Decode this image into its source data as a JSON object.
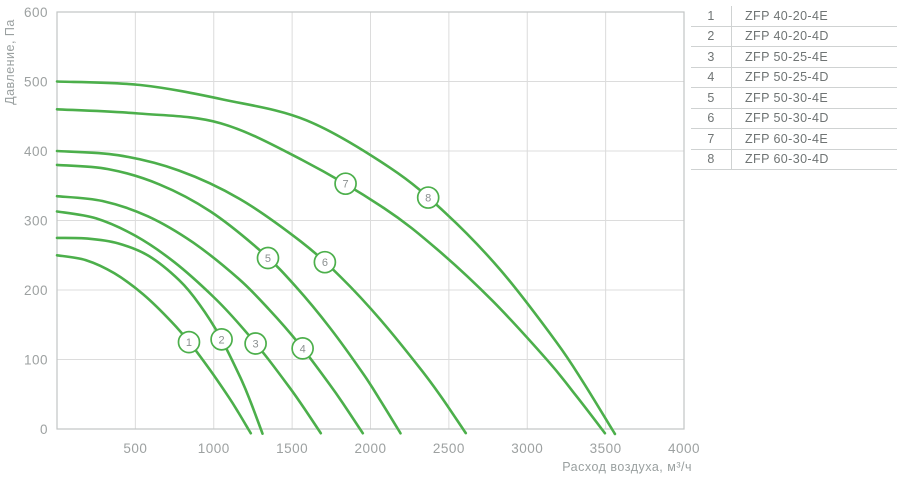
{
  "chart_data": {
    "type": "line",
    "title": "",
    "xlabel": "Расход воздуха, м³/ч",
    "ylabel": "Давление, Па",
    "xlim": [
      0,
      4000
    ],
    "ylim": [
      0,
      600
    ],
    "x_ticks": [
      500,
      1000,
      1500,
      2000,
      2500,
      3000,
      3500,
      4000
    ],
    "y_ticks": [
      0,
      100,
      200,
      300,
      400,
      500,
      600
    ],
    "grid": true,
    "legend_position": "right-table",
    "units": {
      "x": "м³/ч",
      "y": "Па"
    },
    "series": [
      {
        "id": "1",
        "label": "ZFP 40-20-4E",
        "marker": {
          "x": 842,
          "y": 125
        },
        "points": [
          [
            0,
            250
          ],
          [
            183,
            243
          ],
          [
            366,
            224
          ],
          [
            549,
            194
          ],
          [
            732,
            154
          ],
          [
            854,
            122
          ],
          [
            976,
            85
          ],
          [
            1098,
            45
          ],
          [
            1159,
            23
          ],
          [
            1220,
            0
          ]
        ]
      },
      {
        "id": "2",
        "label": "ZFP 40-20-4D",
        "marker": {
          "x": 1050,
          "y": 129
        },
        "points": [
          [
            0,
            275
          ],
          [
            195,
            274
          ],
          [
            390,
            267
          ],
          [
            585,
            249
          ],
          [
            780,
            214
          ],
          [
            910,
            179
          ],
          [
            1040,
            133
          ],
          [
            1170,
            74
          ],
          [
            1235,
            39
          ],
          [
            1300,
            0
          ]
        ]
      },
      {
        "id": "3",
        "label": "ZFP 50-25-4E",
        "marker": {
          "x": 1267,
          "y": 123
        },
        "points": [
          [
            0,
            313
          ],
          [
            250,
            303
          ],
          [
            500,
            278
          ],
          [
            749,
            240
          ],
          [
            999,
            190
          ],
          [
            1166,
            150
          ],
          [
            1332,
            105
          ],
          [
            1499,
            55
          ],
          [
            1582,
            28
          ],
          [
            1665,
            0
          ]
        ]
      },
      {
        "id": "4",
        "label": "ZFP 50-25-4D",
        "marker": {
          "x": 1567,
          "y": 116
        },
        "points": [
          [
            0,
            335
          ],
          [
            290,
            328
          ],
          [
            580,
            306
          ],
          [
            870,
            268
          ],
          [
            1160,
            216
          ],
          [
            1353,
            172
          ],
          [
            1546,
            122
          ],
          [
            1740,
            64
          ],
          [
            1836,
            33
          ],
          [
            1933,
            0
          ]
        ]
      },
      {
        "id": "5",
        "label": "ZFP 50-30-4E",
        "marker": {
          "x": 1346,
          "y": 246
        },
        "points": [
          [
            0,
            380
          ],
          [
            326,
            374
          ],
          [
            653,
            352
          ],
          [
            979,
            313
          ],
          [
            1305,
            255
          ],
          [
            1523,
            205
          ],
          [
            1740,
            146
          ],
          [
            1958,
            78
          ],
          [
            2066,
            40
          ],
          [
            2175,
            0
          ]
        ]
      },
      {
        "id": "6",
        "label": "ZFP 50-30-4D",
        "marker": {
          "x": 1709,
          "y": 240
        },
        "points": [
          [
            0,
            400
          ],
          [
            389,
            394
          ],
          [
            777,
            372
          ],
          [
            1166,
            331
          ],
          [
            1554,
            270
          ],
          [
            1813,
            218
          ],
          [
            2072,
            155
          ],
          [
            2331,
            83
          ],
          [
            2461,
            43
          ],
          [
            2590,
            0
          ]
        ]
      },
      {
        "id": "7",
        "label": "ZFP 60-30-4E",
        "marker": {
          "x": 1841,
          "y": 353
        },
        "points": [
          [
            0,
            460
          ],
          [
            521,
            454
          ],
          [
            1043,
            440
          ],
          [
            1564,
            387
          ],
          [
            2085,
            318
          ],
          [
            2433,
            257
          ],
          [
            2780,
            184
          ],
          [
            3128,
            99
          ],
          [
            3301,
            51
          ],
          [
            3475,
            0
          ]
        ]
      },
      {
        "id": "8",
        "label": "ZFP 60-30-4D",
        "marker": {
          "x": 2368,
          "y": 333
        },
        "points": [
          [
            0,
            500
          ],
          [
            531,
            495
          ],
          [
            1062,
            474
          ],
          [
            1593,
            444
          ],
          [
            2124,
            376
          ],
          [
            2478,
            311
          ],
          [
            2832,
            228
          ],
          [
            3186,
            125
          ],
          [
            3363,
            65
          ],
          [
            3540,
            0
          ]
        ]
      }
    ],
    "colors": {
      "curve_green": "#4caf4b",
      "grid": "#dcdcdc",
      "axis_border": "#c2c5c5",
      "tick_text": "#9da1a1",
      "axis_title_text": "#9aa0a0",
      "marker_text": "#8b9090",
      "legend_text": "#6f7474",
      "legend_divider": "#cfd2d2",
      "background": "#ffffff"
    }
  },
  "legend": {
    "rows": [
      {
        "num": "1",
        "model": "ZFP 40-20-4E"
      },
      {
        "num": "2",
        "model": "ZFP 40-20-4D"
      },
      {
        "num": "3",
        "model": "ZFP 50-25-4E"
      },
      {
        "num": "4",
        "model": "ZFP 50-25-4D"
      },
      {
        "num": "5",
        "model": "ZFP 50-30-4E"
      },
      {
        "num": "6",
        "model": "ZFP 50-30-4D"
      },
      {
        "num": "7",
        "model": "ZFP 60-30-4E"
      },
      {
        "num": "8",
        "model": "ZFP 60-30-4D"
      }
    ]
  }
}
